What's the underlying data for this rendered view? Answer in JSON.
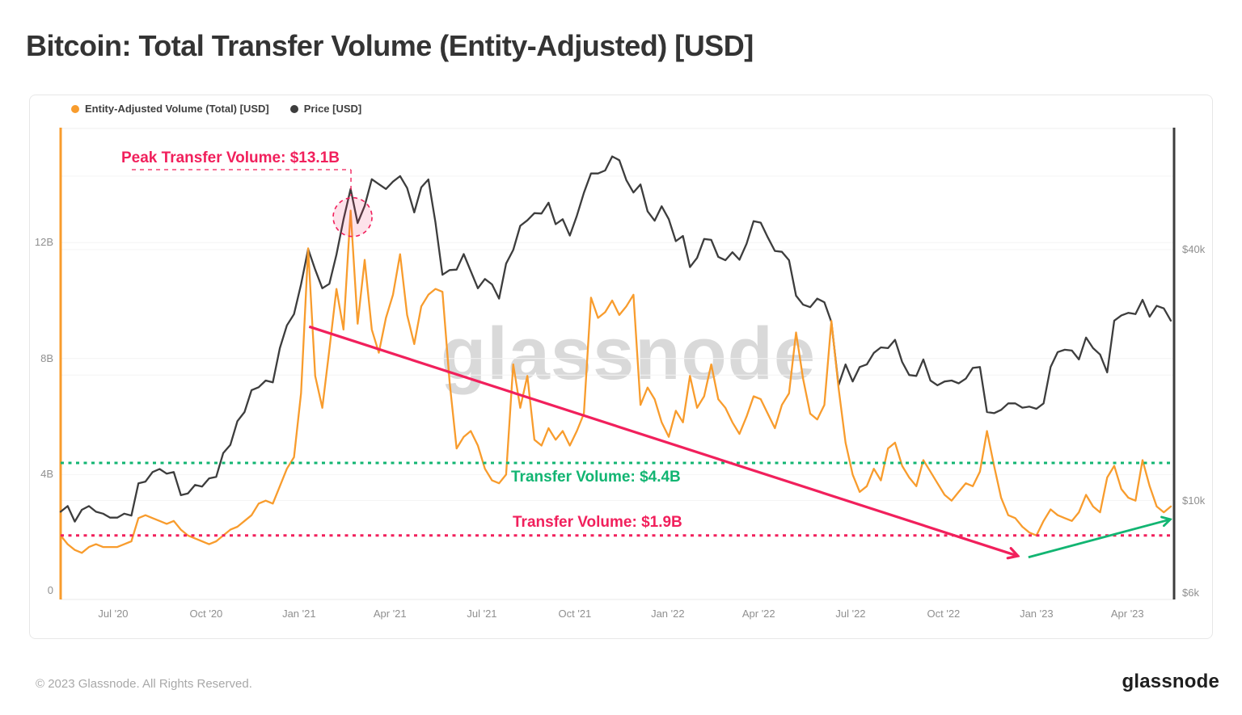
{
  "title": "Bitcoin: Total Transfer Volume (Entity-Adjusted) [USD]",
  "watermark": "glassnode",
  "footer": {
    "copyright": "© 2023 Glassnode. All Rights Reserved.",
    "logo": "glassnode"
  },
  "legend": {
    "items": [
      {
        "label": "Entity-Adjusted Volume (Total) [USD]",
        "color": "#F89C2D"
      },
      {
        "label": "Price [USD]",
        "color": "#3D3D3D"
      }
    ]
  },
  "chart_data": {
    "type": "line",
    "title": "Bitcoin: Total Transfer Volume (Entity-Adjusted) [USD]",
    "start_date": "2020-05-10",
    "interval_days": 7,
    "x_axis": {
      "ticks": [
        {
          "label": "Jul '20",
          "day": 52
        },
        {
          "label": "Oct '20",
          "day": 144
        },
        {
          "label": "Jan '21",
          "day": 236
        },
        {
          "label": "Apr '21",
          "day": 326
        },
        {
          "label": "Jul '21",
          "day": 417
        },
        {
          "label": "Oct '21",
          "day": 509
        },
        {
          "label": "Jan '22",
          "day": 601
        },
        {
          "label": "Apr '22",
          "day": 691
        },
        {
          "label": "Jul '22",
          "day": 782
        },
        {
          "label": "Oct '22",
          "day": 874
        },
        {
          "label": "Jan '23",
          "day": 966
        },
        {
          "label": "Apr '23",
          "day": 1056
        }
      ]
    },
    "left_axis": {
      "label": "Entity-Adjusted Volume (Total)",
      "unit": "billion USD",
      "range": [
        0,
        16
      ],
      "ticks": [
        {
          "label": "12B",
          "value": 12
        },
        {
          "label": "8B",
          "value": 8
        },
        {
          "label": "4B",
          "value": 4
        },
        {
          "label": "0",
          "value": 0
        }
      ],
      "grid": [
        12,
        8,
        4
      ]
    },
    "right_axis": {
      "label": "Price",
      "unit": "thousand USD",
      "scale": "log",
      "ticks": [
        {
          "label": "$40k",
          "value": 40
        },
        {
          "label": "$10k",
          "value": 10
        },
        {
          "label": "$6k",
          "value": 6
        }
      ],
      "grid": [
        60,
        40,
        20,
        10
      ]
    },
    "series": [
      {
        "name": "Entity-Adjusted Volume (Total) [USD]",
        "axis": "left",
        "color": "#F89C2D",
        "unit": "billion USD",
        "values": [
          1.9,
          1.6,
          1.4,
          1.3,
          1.5,
          1.6,
          1.5,
          1.5,
          1.5,
          1.6,
          1.7,
          2.5,
          2.6,
          2.5,
          2.4,
          2.3,
          2.4,
          2.1,
          1.9,
          1.8,
          1.7,
          1.6,
          1.7,
          1.9,
          2.1,
          2.2,
          2.4,
          2.6,
          3.0,
          3.1,
          3.0,
          3.6,
          4.2,
          4.6,
          6.8,
          11.8,
          7.4,
          6.3,
          8.3,
          10.4,
          9.0,
          13.1,
          9.2,
          11.4,
          9.0,
          8.2,
          9.4,
          10.2,
          11.6,
          9.5,
          8.5,
          9.8,
          10.2,
          10.4,
          10.3,
          7.2,
          4.9,
          5.3,
          5.5,
          5.0,
          4.2,
          3.8,
          3.7,
          4.0,
          7.8,
          6.3,
          7.4,
          5.2,
          5.0,
          5.6,
          5.2,
          5.5,
          5.0,
          5.5,
          6.1,
          10.1,
          9.4,
          9.6,
          10.0,
          9.5,
          9.8,
          10.2,
          6.4,
          7.0,
          6.6,
          5.8,
          5.3,
          6.2,
          5.8,
          7.4,
          6.3,
          6.7,
          7.8,
          6.6,
          6.3,
          5.8,
          5.4,
          6.0,
          6.7,
          6.6,
          6.1,
          5.6,
          6.4,
          6.8,
          8.9,
          7.3,
          6.1,
          5.9,
          6.4,
          9.3,
          7.0,
          5.1,
          4.0,
          3.4,
          3.6,
          4.2,
          3.8,
          4.9,
          5.1,
          4.3,
          3.9,
          3.6,
          4.5,
          4.1,
          3.7,
          3.3,
          3.1,
          3.4,
          3.7,
          3.6,
          4.1,
          5.5,
          4.3,
          3.2,
          2.6,
          2.5,
          2.2,
          2.0,
          1.9,
          2.4,
          2.8,
          2.6,
          2.5,
          2.4,
          2.7,
          3.3,
          2.9,
          2.7,
          3.9,
          4.3,
          3.5,
          3.2,
          3.1,
          4.5,
          3.6,
          2.9,
          2.7,
          2.9
        ]
      },
      {
        "name": "Price [USD]",
        "axis": "right",
        "color": "#3D3D3D",
        "unit": "thousand USD",
        "values": [
          9.4,
          9.7,
          8.9,
          9.5,
          9.7,
          9.4,
          9.3,
          9.1,
          9.1,
          9.3,
          9.2,
          11.0,
          11.1,
          11.7,
          11.9,
          11.6,
          11.7,
          10.3,
          10.4,
          10.9,
          10.8,
          11.3,
          11.4,
          13.0,
          13.6,
          15.5,
          16.3,
          18.4,
          18.7,
          19.4,
          19.2,
          23.2,
          26.3,
          28.0,
          33.0,
          40.1,
          35.8,
          32.3,
          33.1,
          38.9,
          47.2,
          55.9,
          46.3,
          50.9,
          59.0,
          57.4,
          55.9,
          58.2,
          60.0,
          56.2,
          49.1,
          56.4,
          58.9,
          46.5,
          34.8,
          35.7,
          35.8,
          39.0,
          35.5,
          32.3,
          34.0,
          33.0,
          30.5,
          37.0,
          39.9,
          45.6,
          47.0,
          48.9,
          48.8,
          51.8,
          46.0,
          47.3,
          43.2,
          48.2,
          54.7,
          60.9,
          60.9,
          61.9,
          66.9,
          65.5,
          58.7,
          54.8,
          57.3,
          49.4,
          46.9,
          50.8,
          47.3,
          41.9,
          43.1,
          36.3,
          38.2,
          42.4,
          42.2,
          38.4,
          37.7,
          39.4,
          37.8,
          41.3,
          46.8,
          46.4,
          42.8,
          39.7,
          39.5,
          37.7,
          31.0,
          29.5,
          29.1,
          30.5,
          29.9,
          26.8,
          18.9,
          21.2,
          19.3,
          20.9,
          21.2,
          22.6,
          23.3,
          23.2,
          24.3,
          21.5,
          20.0,
          19.9,
          21.8,
          19.4,
          18.9,
          19.3,
          19.4,
          19.1,
          19.6,
          20.8,
          20.9,
          16.3,
          16.2,
          16.5,
          17.1,
          17.1,
          16.7,
          16.8,
          16.6,
          17.1,
          20.9,
          22.7,
          23.0,
          22.9,
          21.8,
          24.6,
          23.2,
          22.4,
          20.3,
          27.0,
          27.8,
          28.2,
          28.0,
          30.3,
          27.6,
          29.3,
          28.9,
          27.0
        ]
      }
    ],
    "annotations": {
      "peak": {
        "label": "Peak Transfer Volume: $13.1B",
        "value_b": 13.1,
        "day": 289,
        "color": "#F1205C"
      },
      "upper_threshold": {
        "label": "Transfer Volume: $4.4B",
        "value_b": 4.4,
        "color": "#12B572"
      },
      "lower_threshold": {
        "label": "Transfer Volume: $1.9B",
        "value_b": 1.9,
        "color": "#F1205C"
      },
      "downtrend_arrow": {
        "from_day": 246,
        "from_value_b": 9.1,
        "to_day": 947,
        "to_value_b": 1.2,
        "color": "#F1205C"
      },
      "uptrend_arrow": {
        "from_day": 958,
        "from_value_b": 1.15,
        "to_day": 1098,
        "to_value_b": 2.45,
        "color": "#12B572"
      }
    }
  }
}
